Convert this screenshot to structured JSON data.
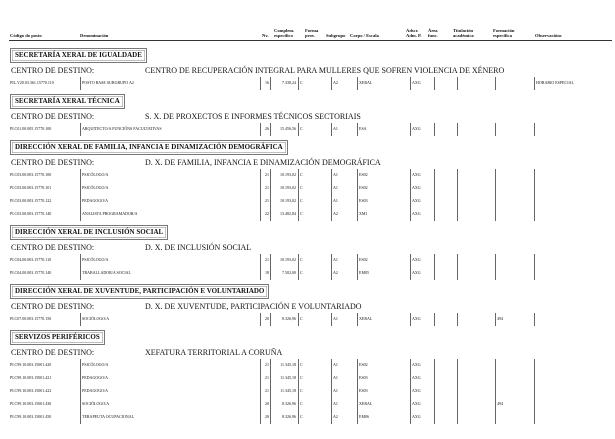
{
  "header": {
    "codigo": "Código do posto",
    "denominacion": "Denominación",
    "nv": "Nv.",
    "complemento": "Complem.\nespecífico",
    "forma": "Forma\nprov.",
    "subgrupo": "Subgrupo",
    "corpo": "Corpo / Escala",
    "adscr": "Adscr.\nAdm. P.",
    "area": "Área\nfunc.",
    "titulacion": "Titulación\nacadémica",
    "formacion": "Formación\nespecífica",
    "observacions": "Observacións"
  },
  "centro_label": "CENTRO DE DESTINO:",
  "sections": [
    {
      "title": "SECRETARÍA XERAL DE IGUALDADE",
      "centro": "CENTRO DE RECUPERACIÓN INTEGRAL PARA MULLERES QUE SOFREN VIOLENCIA DE XÉNERO",
      "centro_x": 145,
      "rows": [
        [
          "PIL.V20.03.361.15770.110",
          "POSTO BASE SUBGRUPO A2",
          "16",
          "7.338,24",
          "C",
          "A2",
          "XERAL",
          "AXG",
          "",
          "",
          "",
          "HORARIO ESPECIAL"
        ]
      ]
    },
    {
      "title": "SECRETARÍA XERAL TÉCNICA",
      "centro": "S. X. DE PROXECTOS E INFORMES TÉCNICOS SECTORIAIS",
      "centro_x": 145,
      "rows": [
        [
          "PI.C01.00.005.15770.100",
          "ARQUITECTO/A FUNCIÓNS FACULTATIVAS",
          "26",
          "15.456,56",
          "C",
          "A1",
          "ESA",
          "AXG",
          "",
          "",
          "",
          ""
        ]
      ]
    },
    {
      "title": "DIRECCIÓN XERAL DE FAMILIA, INFANCIA E DINAMIZACIÓN DEMOGRÁFICA",
      "centro": "D. X. DE FAMILIA, INFANCIA E DINAMIZACIÓN DEMOGRÁFICA",
      "centro_x": 145,
      "rows": [
        [
          "PI.C03.00.003.15770.100",
          "PSICÓLOGO/A",
          "21",
          "10.193,02",
          "C",
          "A1",
          "ES02",
          "AXG",
          "",
          "",
          "",
          ""
        ],
        [
          "PI.C03.00.003.15770.101",
          "PSICÓLOGO/A",
          "21",
          "10.193,02",
          "C",
          "A1",
          "ES02",
          "AXG",
          "",
          "",
          "",
          ""
        ],
        [
          "PI.C03.00.003.15770.122",
          "PEDAGOGO/A",
          "21",
          "10.193,02",
          "C",
          "A1",
          "ES03",
          "AXG",
          "",
          "",
          "",
          ""
        ],
        [
          "PI.C03.00.003.15770.140",
          "ANALISTA PROGRAMADOR/A",
          "22",
          "13.482,84",
          "C",
          "A2",
          "XMI",
          "AXG",
          "",
          "",
          "",
          ""
        ]
      ]
    },
    {
      "title": "DIRECCIÓN XERAL DE INCLUSIÓN SOCIAL",
      "centro": "D. X. DE INCLUSIÓN SOCIAL",
      "centro_x": 145,
      "rows": [
        [
          "PI.C04.00.003.15770.110",
          "PSICÓLOGO/A",
          "21",
          "10.193,02",
          "C",
          "A1",
          "ES02",
          "AXG",
          "",
          "",
          "",
          ""
        ],
        [
          "PI.C04.00.003.15770.140",
          "TRABALLADOR/A SOCIAL",
          "18",
          "7.502,00",
          "C",
          "A2",
          "EM05",
          "AXG",
          "",
          "",
          "",
          ""
        ]
      ]
    },
    {
      "title": "DIRECCIÓN XERAL DE XUVENTUDE, PARTICIPACIÓN E VOLUNTARIADO",
      "centro": "D. X. DE XUVENTUDE, PARTICIPACIÓN E VOLUNTARIADO",
      "centro_x": 145,
      "rows": [
        [
          "PI.C07.00.003.15770.150",
          "SOCIÓLOGO/A",
          "20",
          "8.326,96",
          "C",
          "A1",
          "XERAL",
          "AXG",
          "",
          "",
          "494",
          ""
        ]
      ]
    },
    {
      "title": "SERVIZOS PERIFÉRICOS",
      "centro": "XEFATURA TERRITORIAL A CORUÑA",
      "centro_x": 145,
      "rows": [
        [
          "PI.C99.10.003.15001.420",
          "PSICÓLOGO/A",
          "21",
          "11.345,18",
          "C",
          "A1",
          "ES02",
          "AXG",
          "",
          "",
          "",
          ""
        ],
        [
          "PI.C99.10.003.15001.421",
          "PEDAGOGO/A",
          "21",
          "11.345,18",
          "C",
          "A1",
          "ES03",
          "AXG",
          "",
          "",
          "",
          ""
        ],
        [
          "PI.C99.10.003.15001.422",
          "PEDAGOGO/A",
          "21",
          "11.345,18",
          "C",
          "A1",
          "ES03",
          "AXG",
          "",
          "",
          "",
          ""
        ],
        [
          "PI.C99.10.003.15001.430",
          "SOCIÓLOGO/A",
          "20",
          "8.326,96",
          "C",
          "A1",
          "XERAL",
          "AXG",
          "",
          "",
          "494",
          ""
        ],
        [
          "PI.C99.10.003.15001.450",
          "TERAPEUTA OCUPACIONAL",
          "20",
          "8.326,96",
          "C",
          "A2",
          "EM06",
          "AXG",
          "",
          "",
          "",
          ""
        ]
      ]
    }
  ]
}
